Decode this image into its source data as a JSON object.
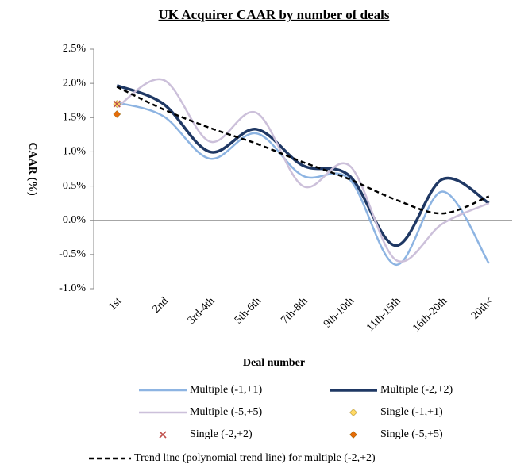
{
  "chart_data": {
    "type": "line",
    "title": "UK Acquirer CAAR by number of deals",
    "x_label": "Deal number",
    "y_label": "CAAR (%)",
    "categories": [
      "1st",
      "2nd",
      "3rd-4th",
      "5th-6th",
      "7th-8th",
      "9th-10th",
      "11th-15th",
      "16th-20th",
      "20th<"
    ],
    "ylim": [
      -1.0,
      2.5
    ],
    "yticks": [
      {
        "value": 2.5,
        "label": "2.5%"
      },
      {
        "value": 2.0,
        "label": "2.0%"
      },
      {
        "value": 1.5,
        "label": "1.5%"
      },
      {
        "value": 1.0,
        "label": "1.0%"
      },
      {
        "value": 0.5,
        "label": "0.5%"
      },
      {
        "value": 0.0,
        "label": "0.0%"
      },
      {
        "value": -0.5,
        "label": "-0.5%"
      },
      {
        "value": -1.0,
        "label": "-1.0%"
      }
    ],
    "series": [
      {
        "name": "Multiple (-1,+1)",
        "color": "#8db4e2",
        "style": "line",
        "width": 2.5,
        "values": [
          1.72,
          1.52,
          0.9,
          1.27,
          0.65,
          0.6,
          -0.65,
          0.42,
          -0.63
        ]
      },
      {
        "name": "Multiple (-2,+2)",
        "color": "#1f3864",
        "style": "line",
        "width": 3.5,
        "values": [
          1.97,
          1.7,
          1.0,
          1.33,
          0.8,
          0.65,
          -0.37,
          0.6,
          0.25
        ]
      },
      {
        "name": "Multiple (-5,+5)",
        "color": "#ccc0da",
        "style": "line",
        "width": 2.5,
        "values": [
          1.65,
          2.05,
          1.15,
          1.57,
          0.5,
          0.8,
          -0.58,
          -0.05,
          0.25
        ]
      },
      {
        "name": "Single (-1,+1)",
        "color": "#ffd966",
        "style": "marker",
        "marker": "diamond",
        "values": [
          1.7,
          null,
          null,
          null,
          null,
          null,
          null,
          null,
          null
        ]
      },
      {
        "name": "Single (-2,+2)",
        "color": "#c0504d",
        "style": "marker",
        "marker": "x",
        "values": [
          1.7,
          null,
          null,
          null,
          null,
          null,
          null,
          null,
          null
        ]
      },
      {
        "name": "Single (-5,+5)",
        "color": "#e46c0a",
        "style": "marker",
        "marker": "diamond",
        "values": [
          1.55,
          null,
          null,
          null,
          null,
          null,
          null,
          null,
          null
        ]
      },
      {
        "name": "Trend line (polynomial trend line) for multiple (-2,+2)",
        "color": "#000000",
        "style": "line",
        "width": 2.5,
        "dash": true,
        "values": [
          1.95,
          1.62,
          1.35,
          1.12,
          0.85,
          0.6,
          0.3,
          0.1,
          0.35
        ]
      }
    ]
  }
}
